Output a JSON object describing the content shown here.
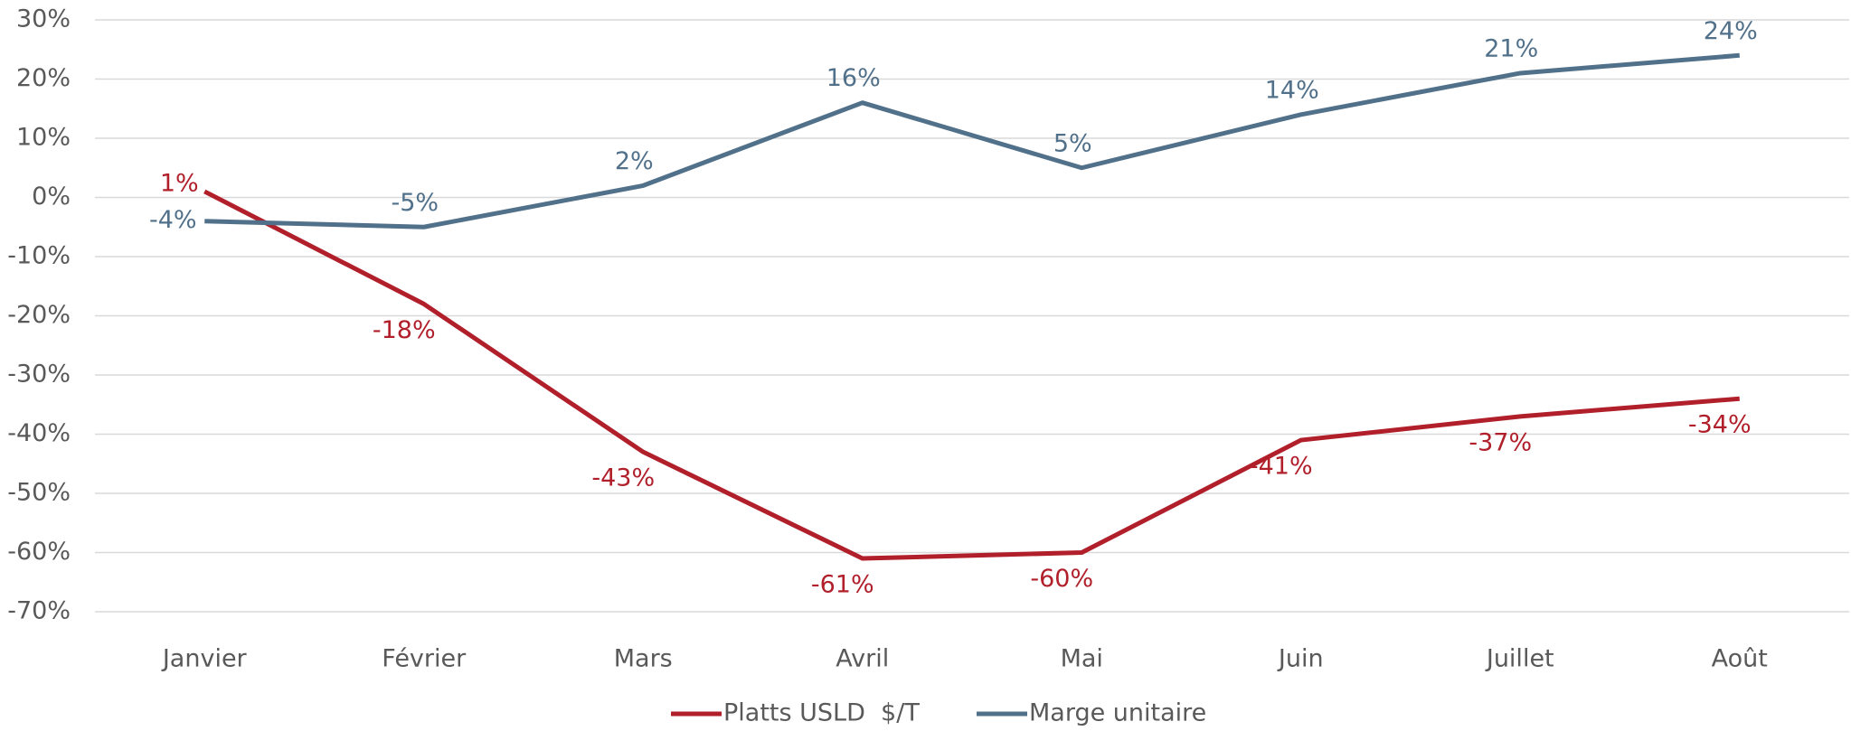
{
  "chart_data": {
    "type": "line",
    "categories": [
      "Janvier",
      "Février",
      "Mars",
      "Avril",
      "Mai",
      "Juin",
      "Juillet",
      "Août"
    ],
    "series": [
      {
        "name": "Platts USLD  $/T",
        "color": "#b01f2a",
        "values": [
          1,
          -18,
          -43,
          -61,
          -60,
          -41,
          -37,
          -34
        ],
        "value_labels": [
          "1%",
          "-18%",
          "-43%",
          "-61%",
          "-60%",
          "-41%",
          "-37%",
          "-34%"
        ]
      },
      {
        "name": "Marge unitaire",
        "color": "#51708a",
        "values": [
          -4,
          -5,
          2,
          16,
          5,
          14,
          21,
          24
        ],
        "value_labels": [
          "-4%",
          "-5%",
          "2%",
          "16%",
          "5%",
          "14%",
          "21%",
          "24%"
        ]
      }
    ],
    "ylim": [
      -70,
      30
    ],
    "yticks": [
      {
        "value": 30,
        "label": "30%"
      },
      {
        "value": 20,
        "label": "20%"
      },
      {
        "value": 10,
        "label": "10%"
      },
      {
        "value": 0,
        "label": "0%"
      },
      {
        "value": -10,
        "label": "-10%"
      },
      {
        "value": -20,
        "label": "-20%"
      },
      {
        "value": -30,
        "label": "-30%"
      },
      {
        "value": -40,
        "label": "-40%"
      },
      {
        "value": -50,
        "label": "-50%"
      },
      {
        "value": -60,
        "label": "-60%"
      },
      {
        "value": -70,
        "label": "-70%"
      }
    ],
    "grid": true,
    "legend": "bottom"
  }
}
